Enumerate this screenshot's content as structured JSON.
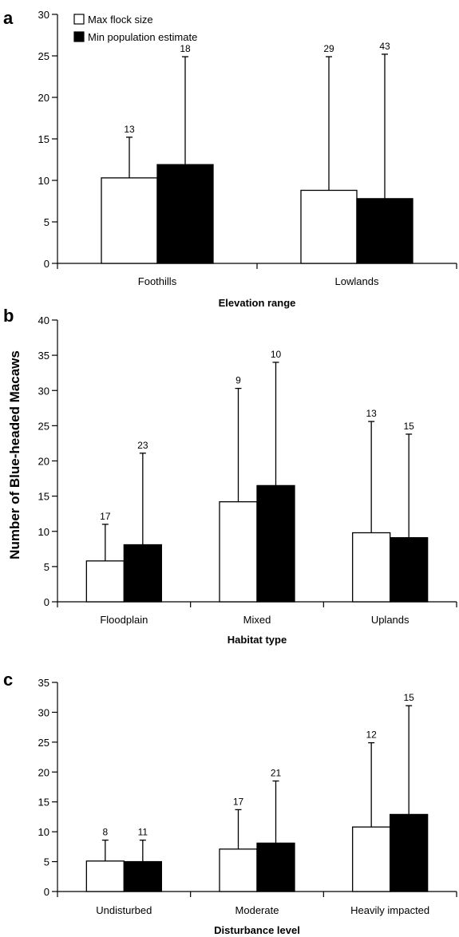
{
  "y_axis_label": "Number of Blue-headed Macaws",
  "legend": [
    {
      "label": "Max flock size",
      "color": "#ffffff"
    },
    {
      "label": "Min population estimate",
      "color": "#000000"
    }
  ],
  "chart_data": [
    {
      "type": "bar",
      "panel": "a",
      "xlabel": "Elevation range",
      "ylabel": "Number of Blue-headed Macaws",
      "ylim": [
        0,
        30
      ],
      "yticks": [
        0,
        5,
        10,
        15,
        20,
        25,
        30
      ],
      "categories": [
        "Foothills",
        "Lowlands"
      ],
      "series": [
        {
          "name": "Max flock size",
          "color": "#ffffff",
          "values": [
            10.3,
            8.8
          ],
          "error_upper": [
            15.2,
            24.9
          ],
          "n": [
            "13",
            "29"
          ]
        },
        {
          "name": "Min population estimate",
          "color": "#000000",
          "values": [
            11.9,
            7.8
          ],
          "error_upper": [
            24.9,
            25.2
          ],
          "n": [
            "18",
            "43"
          ]
        }
      ]
    },
    {
      "type": "bar",
      "panel": "b",
      "xlabel": "Habitat type",
      "ylabel": "Number of Blue-headed Macaws",
      "ylim": [
        0,
        40
      ],
      "yticks": [
        0,
        5,
        10,
        15,
        20,
        25,
        30,
        35,
        40
      ],
      "categories": [
        "Floodplain",
        "Mixed",
        "Uplands"
      ],
      "series": [
        {
          "name": "Max flock size",
          "color": "#ffffff",
          "values": [
            5.8,
            14.2,
            9.8
          ],
          "error_upper": [
            11.0,
            30.3,
            25.6
          ],
          "n": [
            "17",
            "9",
            "13"
          ]
        },
        {
          "name": "Min population estimate",
          "color": "#000000",
          "values": [
            8.1,
            16.5,
            9.1
          ],
          "error_upper": [
            21.1,
            34.0,
            23.8
          ],
          "n": [
            "23",
            "10",
            "15"
          ]
        }
      ]
    },
    {
      "type": "bar",
      "panel": "c",
      "xlabel": "Disturbance level",
      "ylabel": "Number of Blue-headed Macaws",
      "ylim": [
        0,
        35
      ],
      "yticks": [
        0,
        5,
        10,
        15,
        20,
        25,
        30,
        35
      ],
      "categories": [
        "Undisturbed",
        "Moderate",
        "Heavily impacted"
      ],
      "series": [
        {
          "name": "Max flock size",
          "color": "#ffffff",
          "values": [
            5.1,
            7.1,
            10.8
          ],
          "error_upper": [
            8.6,
            13.7,
            24.9
          ],
          "n": [
            "8",
            "17",
            "12"
          ]
        },
        {
          "name": "Min population estimate",
          "color": "#000000",
          "values": [
            5.0,
            8.1,
            12.9
          ],
          "error_upper": [
            8.6,
            18.5,
            31.1
          ],
          "n": [
            "11",
            "21",
            "15"
          ]
        }
      ]
    }
  ]
}
